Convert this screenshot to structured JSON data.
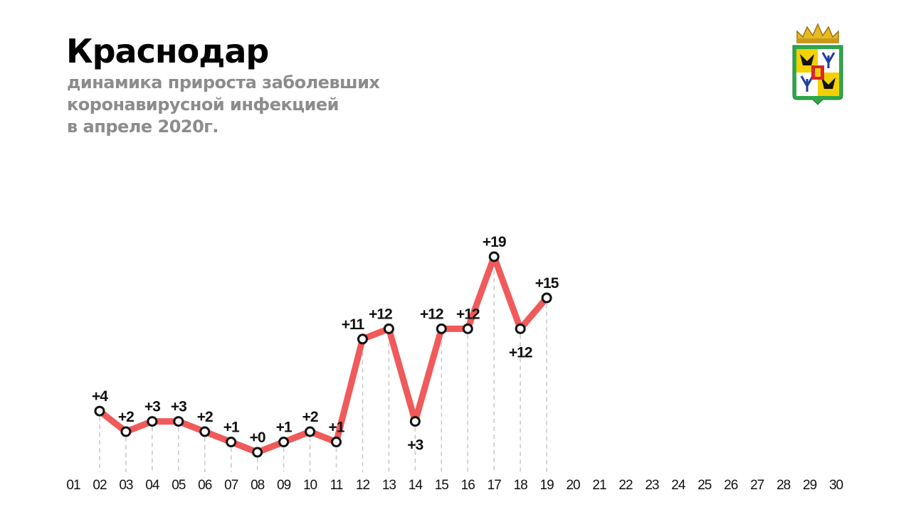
{
  "header": {
    "title": "Краснодар",
    "subtitle_lines": [
      "динамика прироста заболевших",
      "коронавирусной инфекцией",
      "в апреле 2020г."
    ]
  },
  "emblem": {
    "icon": "krasnodar-coat-of-arms-icon"
  },
  "colors": {
    "line": "#f05a5a",
    "marker_fill": "#ffffff",
    "marker_stroke": "#111111",
    "guide": "#c8c8c8",
    "subtitle": "#8c8c8c"
  },
  "chart_data": {
    "type": "line",
    "title": "",
    "xlabel": "",
    "ylabel": "",
    "categories": [
      "01",
      "02",
      "03",
      "04",
      "05",
      "06",
      "07",
      "08",
      "09",
      "10",
      "11",
      "12",
      "13",
      "14",
      "15",
      "16",
      "17",
      "18",
      "19",
      "20",
      "21",
      "22",
      "23",
      "24",
      "25",
      "26",
      "27",
      "28",
      "29",
      "30"
    ],
    "series": [
      {
        "x": [
          "02",
          "03",
          "04",
          "05",
          "06",
          "07",
          "08",
          "09",
          "10",
          "11",
          "12",
          "13",
          "14",
          "15",
          "16",
          "17",
          "18",
          "19"
        ],
        "values": [
          4,
          2,
          3,
          3,
          2,
          1,
          0,
          1,
          2,
          1,
          11,
          12,
          3,
          12,
          12,
          19,
          12,
          15
        ],
        "labels": [
          "+4",
          "+2",
          "+3",
          "+3",
          "+2",
          "+1",
          "+0",
          "+1",
          "+2",
          "+1",
          "+11",
          "+12",
          "+3",
          "+12",
          "+12",
          "+19",
          "+12",
          "+15"
        ]
      }
    ],
    "ylim": [
      0,
      20
    ],
    "grid": false,
    "legend": "none"
  }
}
